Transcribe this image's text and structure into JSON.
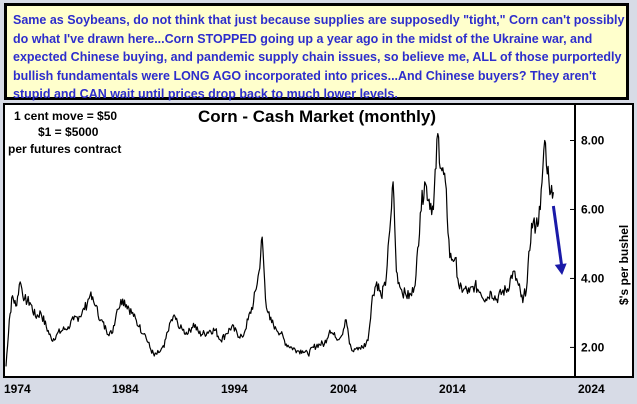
{
  "note": {
    "text": "Same as Soybeans, do not think that just because supplies are supposedly \"tight,\" Corn can't possibly do what I've drawn here...Corn STOPPED going up a year ago in the midst of the Ukraine war, and expected Chinese buying, and pandemic supply chain issues, so believe me, ALL of those purportedly bullish fundamentals were LONG AGO incorporated into prices...And Chinese buyers? They aren't stupid and CAN wait until prices drop back to much lower levels."
  },
  "annotations": {
    "line1": "1 cent move = $50",
    "line2": "$1 = $5000",
    "line3": "per futures contract"
  },
  "colors": {
    "note_text": "#2d2dcc",
    "note_bg": "#ffffcc",
    "arrow": "#1a1aa8",
    "series": "#000000"
  },
  "chart_data": {
    "type": "line",
    "title": "Corn - Cash Market (monthly)",
    "xlabel": "",
    "ylabel": "$'s per bushel",
    "x_ticks": [
      "1974",
      "1984",
      "1994",
      "2004",
      "2014",
      "2024"
    ],
    "y_ticks": [
      "2.00",
      "4.00",
      "6.00",
      "8.00"
    ],
    "xlim": [
      1973,
      2025
    ],
    "ylim": [
      1.2,
      9.0
    ],
    "y_axis_side": "right",
    "grid": false,
    "series": [
      {
        "x": [
          1973.0,
          1973.3,
          1973.6,
          1973.9,
          1974.3,
          1974.7,
          1975.2,
          1975.7,
          1976.2,
          1976.7,
          1977.2,
          1977.7,
          1978.2,
          1978.7,
          1979.2,
          1979.7,
          1980.2,
          1980.7,
          1981.2,
          1981.7,
          1982.2,
          1982.7,
          1983.2,
          1983.7,
          1984.2,
          1984.7,
          1985.2,
          1985.7,
          1986.2,
          1986.6,
          1987.0,
          1987.5,
          1988.0,
          1988.5,
          1988.8,
          1989.2,
          1989.7,
          1990.2,
          1990.7,
          1991.2,
          1991.7,
          1992.2,
          1992.7,
          1993.2,
          1993.7,
          1994.2,
          1994.7,
          1995.2,
          1995.7,
          1996.2,
          1996.5,
          1996.8,
          1997.2,
          1997.7,
          1998.2,
          1998.7,
          1999.2,
          1999.7,
          2000.2,
          2000.7,
          2001.2,
          2001.7,
          2002.2,
          2002.7,
          2003.2,
          2003.7,
          2004.2,
          2004.5,
          2004.8,
          2005.2,
          2005.7,
          2006.2,
          2006.6,
          2007.0,
          2007.4,
          2007.8,
          2008.2,
          2008.5,
          2008.8,
          2009.2,
          2009.7,
          2010.2,
          2010.6,
          2011.0,
          2011.4,
          2011.8,
          2012.2,
          2012.6,
          2012.9,
          2013.3,
          2013.7,
          2014.2,
          2014.6,
          2015.0,
          2015.5,
          2016.0,
          2016.5,
          2017.0,
          2017.5,
          2018.0,
          2018.5,
          2019.0,
          2019.5,
          2020.0,
          2020.4,
          2020.8,
          2021.2,
          2021.6,
          2022.0,
          2022.4,
          2022.8,
          2023.2
        ],
        "y": [
          1.45,
          2.8,
          3.5,
          3.2,
          3.9,
          3.4,
          3.3,
          2.9,
          3.0,
          2.6,
          2.2,
          2.4,
          2.5,
          2.6,
          2.8,
          2.9,
          3.1,
          3.5,
          3.2,
          2.8,
          2.5,
          2.4,
          3.1,
          3.4,
          3.2,
          2.9,
          2.6,
          2.4,
          2.0,
          1.75,
          1.85,
          2.0,
          2.7,
          2.9,
          2.6,
          2.5,
          2.4,
          2.7,
          2.4,
          2.4,
          2.5,
          2.5,
          2.2,
          2.4,
          2.6,
          2.4,
          2.3,
          2.8,
          3.3,
          4.2,
          5.2,
          3.4,
          2.8,
          2.6,
          2.4,
          2.1,
          2.0,
          1.9,
          1.9,
          1.8,
          2.0,
          2.1,
          2.1,
          2.5,
          2.3,
          2.3,
          2.8,
          2.1,
          1.9,
          2.0,
          2.0,
          2.2,
          3.5,
          3.9,
          3.5,
          3.8,
          5.4,
          6.8,
          4.2,
          3.7,
          3.5,
          3.5,
          4.1,
          5.9,
          6.8,
          6.3,
          6.0,
          8.2,
          7.2,
          6.8,
          4.6,
          4.6,
          3.7,
          3.7,
          3.6,
          3.8,
          3.6,
          3.4,
          3.6,
          3.4,
          3.6,
          3.7,
          4.2,
          3.8,
          3.3,
          3.9,
          5.6,
          5.5,
          6.0,
          8.0,
          6.8,
          6.5
        ]
      }
    ],
    "arrow": {
      "from": [
        2023.2,
        6.1
      ],
      "to": [
        2024.0,
        4.1
      ]
    }
  }
}
